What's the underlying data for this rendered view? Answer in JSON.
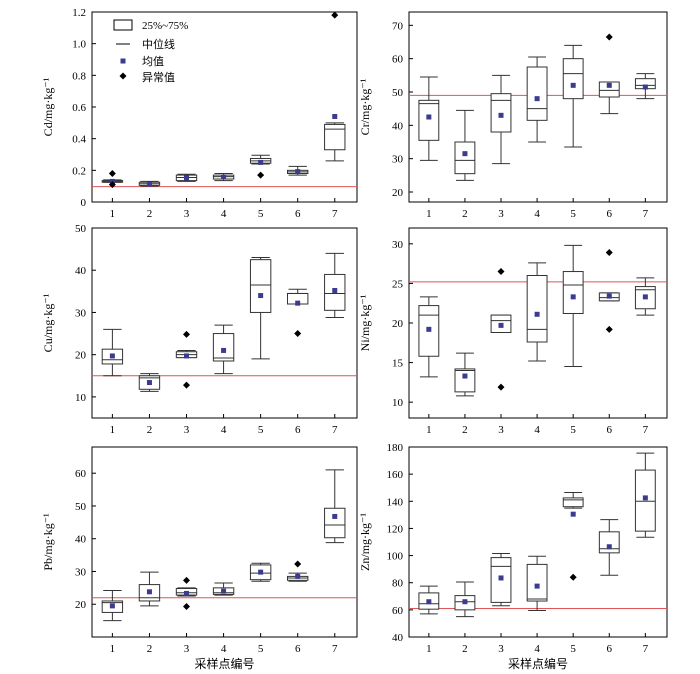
{
  "figure": {
    "xlabel_bottom": "采样点编号",
    "legend": {
      "box_label": "25%~75%",
      "median_label": "中位线",
      "mean_label": "均值",
      "outlier_label": "异常值"
    },
    "colors": {
      "reference_line": "#e05555",
      "mean_marker": "#3b3b8f",
      "box_stroke": "#333333",
      "outlier": "#000000"
    }
  },
  "chart_data": [
    {
      "type": "box",
      "ylabel": "Cd/mg·kg⁻¹",
      "categories": [
        "1",
        "2",
        "3",
        "4",
        "5",
        "6",
        "7"
      ],
      "ylim": [
        0,
        1.2
      ],
      "yticks": [
        0,
        0.2,
        0.4,
        0.6,
        0.8,
        1.0,
        1.2
      ],
      "ytick_labels": [
        "0",
        "0.2",
        "0.4",
        "0.6",
        "0.8",
        "1.0",
        "1.2"
      ],
      "reference_line": 0.097,
      "has_legend": true,
      "boxes": [
        {
          "whisker_low": 0.125,
          "q1": 0.125,
          "median": 0.13,
          "q3": 0.135,
          "whisker_high": 0.14,
          "mean": 0.13,
          "outliers": [
            0.18,
            0.11
          ]
        },
        {
          "whisker_low": 0.1,
          "q1": 0.105,
          "median": 0.115,
          "q3": 0.125,
          "whisker_high": 0.13,
          "mean": 0.112,
          "outliers": []
        },
        {
          "whisker_low": 0.13,
          "q1": 0.135,
          "median": 0.155,
          "q3": 0.17,
          "whisker_high": 0.175,
          "mean": 0.152,
          "outliers": []
        },
        {
          "whisker_low": 0.135,
          "q1": 0.145,
          "median": 0.16,
          "q3": 0.17,
          "whisker_high": 0.18,
          "mean": 0.158,
          "outliers": []
        },
        {
          "whisker_low": 0.24,
          "q1": 0.245,
          "median": 0.26,
          "q3": 0.275,
          "whisker_high": 0.295,
          "mean": 0.25,
          "outliers": [
            0.17
          ]
        },
        {
          "whisker_low": 0.17,
          "q1": 0.18,
          "median": 0.19,
          "q3": 0.2,
          "whisker_high": 0.225,
          "mean": 0.192,
          "outliers": []
        },
        {
          "whisker_low": 0.26,
          "q1": 0.33,
          "median": 0.46,
          "q3": 0.49,
          "whisker_high": 0.5,
          "mean": 0.54,
          "outliers": [
            1.18
          ]
        }
      ]
    },
    {
      "type": "box",
      "ylabel": "Cr/mg·kg⁻¹",
      "categories": [
        "1",
        "2",
        "3",
        "4",
        "5",
        "6",
        "7"
      ],
      "ylim": [
        17,
        74
      ],
      "yticks": [
        20,
        30,
        40,
        50,
        60,
        70
      ],
      "ytick_labels": [
        "20",
        "30",
        "40",
        "50",
        "60",
        "70"
      ],
      "reference_line": 49,
      "has_legend": false,
      "boxes": [
        {
          "whisker_low": 29.5,
          "q1": 35.5,
          "median": 46.5,
          "q3": 47.5,
          "whisker_high": 54.5,
          "mean": 42.5,
          "outliers": []
        },
        {
          "whisker_low": 23.5,
          "q1": 25.5,
          "median": 29.5,
          "q3": 35,
          "whisker_high": 44.5,
          "mean": 31.5,
          "outliers": []
        },
        {
          "whisker_low": 28.5,
          "q1": 38,
          "median": 47.5,
          "q3": 49.5,
          "whisker_high": 55,
          "mean": 43,
          "outliers": []
        },
        {
          "whisker_low": 35,
          "q1": 41.5,
          "median": 45,
          "q3": 57.5,
          "whisker_high": 60.5,
          "mean": 48,
          "outliers": []
        },
        {
          "whisker_low": 33.5,
          "q1": 48,
          "median": 55.5,
          "q3": 60,
          "whisker_high": 64,
          "mean": 52,
          "outliers": []
        },
        {
          "whisker_low": 43.5,
          "q1": 48.5,
          "median": 50.5,
          "q3": 53,
          "whisker_high": 53,
          "mean": 52,
          "outliers": [
            66.5
          ]
        },
        {
          "whisker_low": 48,
          "q1": 51,
          "median": 52,
          "q3": 54,
          "whisker_high": 55.5,
          "mean": 51.5,
          "outliers": []
        }
      ]
    },
    {
      "type": "box",
      "ylabel": "Cu/mg·kg⁻¹",
      "categories": [
        "1",
        "2",
        "3",
        "4",
        "5",
        "6",
        "7"
      ],
      "ylim": [
        5,
        50
      ],
      "yticks": [
        10,
        20,
        30,
        40,
        50
      ],
      "ytick_labels": [
        "10",
        "20",
        "30",
        "40",
        "50"
      ],
      "reference_line": 15,
      "has_legend": false,
      "boxes": [
        {
          "whisker_low": 15,
          "q1": 17.8,
          "median": 18.8,
          "q3": 21.3,
          "whisker_high": 26,
          "mean": 19.7,
          "outliers": []
        },
        {
          "whisker_low": 11.3,
          "q1": 11.8,
          "median": 14.5,
          "q3": 15,
          "whisker_high": 15.5,
          "mean": 13.4,
          "outliers": []
        },
        {
          "whisker_low": 19.3,
          "q1": 19.3,
          "median": 20,
          "q3": 20.7,
          "whisker_high": 21,
          "mean": 19.7,
          "outliers": [
            24.8,
            12.8
          ]
        },
        {
          "whisker_low": 15.5,
          "q1": 18.5,
          "median": 19.2,
          "q3": 25,
          "whisker_high": 27,
          "mean": 21,
          "outliers": []
        },
        {
          "whisker_low": 19,
          "q1": 30,
          "median": 36.5,
          "q3": 42.5,
          "whisker_high": 43,
          "mean": 34,
          "outliers": []
        },
        {
          "whisker_low": 32,
          "q1": 32,
          "median": 34.5,
          "q3": 34.5,
          "whisker_high": 35.5,
          "mean": 32.2,
          "outliers": [
            25
          ]
        },
        {
          "whisker_low": 28.8,
          "q1": 30.5,
          "median": 34.5,
          "q3": 39,
          "whisker_high": 44,
          "mean": 35.2,
          "outliers": []
        }
      ]
    },
    {
      "type": "box",
      "ylabel": "Ni/mg·kg⁻¹",
      "categories": [
        "1",
        "2",
        "3",
        "4",
        "5",
        "6",
        "7"
      ],
      "ylim": [
        8,
        32
      ],
      "yticks": [
        10,
        15,
        20,
        25,
        30
      ],
      "ytick_labels": [
        "10",
        "15",
        "20",
        "25",
        "30"
      ],
      "reference_line": 25.2,
      "has_legend": false,
      "boxes": [
        {
          "whisker_low": 13.2,
          "q1": 15.8,
          "median": 21,
          "q3": 22.2,
          "whisker_high": 23.3,
          "mean": 19.2,
          "outliers": []
        },
        {
          "whisker_low": 10.8,
          "q1": 11.3,
          "median": 14,
          "q3": 14.2,
          "whisker_high": 16.2,
          "mean": 13.3,
          "outliers": []
        },
        {
          "whisker_low": 18.8,
          "q1": 18.8,
          "median": 20.3,
          "q3": 21,
          "whisker_high": 21,
          "mean": 19.7,
          "outliers": [
            26.5,
            11.9
          ]
        },
        {
          "whisker_low": 15.2,
          "q1": 17.6,
          "median": 19.2,
          "q3": 26,
          "whisker_high": 27.6,
          "mean": 21.1,
          "outliers": []
        },
        {
          "whisker_low": 14.5,
          "q1": 21.2,
          "median": 24.8,
          "q3": 26.5,
          "whisker_high": 29.8,
          "mean": 23.3,
          "outliers": []
        },
        {
          "whisker_low": 22.8,
          "q1": 22.8,
          "median": 23.2,
          "q3": 23.8,
          "whisker_high": 23.8,
          "mean": 23.4,
          "outliers": [
            28.9,
            19.2
          ]
        },
        {
          "whisker_low": 21,
          "q1": 21.8,
          "median": 24.2,
          "q3": 24.6,
          "whisker_high": 25.7,
          "mean": 23.3,
          "outliers": []
        }
      ]
    },
    {
      "type": "box",
      "ylabel": "Pb/mg·kg⁻¹",
      "categories": [
        "1",
        "2",
        "3",
        "4",
        "5",
        "6",
        "7"
      ],
      "ylim": [
        10,
        68
      ],
      "yticks": [
        20,
        30,
        40,
        50,
        60
      ],
      "ytick_labels": [
        "20",
        "30",
        "40",
        "50",
        "60"
      ],
      "reference_line": 22,
      "has_legend": false,
      "boxes": [
        {
          "whisker_low": 15,
          "q1": 17.5,
          "median": 20.5,
          "q3": 21,
          "whisker_high": 24.2,
          "mean": 19.5,
          "outliers": []
        },
        {
          "whisker_low": 19.5,
          "q1": 21,
          "median": 22,
          "q3": 26,
          "whisker_high": 29.8,
          "mean": 23.8,
          "outliers": []
        },
        {
          "whisker_low": 22.5,
          "q1": 22.8,
          "median": 23.5,
          "q3": 24.8,
          "whisker_high": 25,
          "mean": 23.3,
          "outliers": [
            27.3,
            19.3
          ]
        },
        {
          "whisker_low": 22.8,
          "q1": 23,
          "median": 23.5,
          "q3": 25,
          "whisker_high": 26.5,
          "mean": 24,
          "outliers": []
        },
        {
          "whisker_low": 27,
          "q1": 27.5,
          "median": 29.5,
          "q3": 32,
          "whisker_high": 32.5,
          "mean": 29.8,
          "outliers": []
        },
        {
          "whisker_low": 27,
          "q1": 27.3,
          "median": 28,
          "q3": 28.5,
          "whisker_high": 29.5,
          "mean": 28.5,
          "outliers": [
            32.3
          ]
        },
        {
          "whisker_low": 38.8,
          "q1": 40.3,
          "median": 44.2,
          "q3": 49.3,
          "whisker_high": 61,
          "mean": 46.8,
          "outliers": []
        }
      ]
    },
    {
      "type": "box",
      "ylabel": "Zn/mg·kg⁻¹",
      "categories": [
        "1",
        "2",
        "3",
        "4",
        "5",
        "6",
        "7"
      ],
      "ylim": [
        40,
        180
      ],
      "yticks": [
        40,
        60,
        80,
        100,
        120,
        140,
        160,
        180
      ],
      "ytick_labels": [
        "40",
        "60",
        "80",
        "100",
        "120",
        "140",
        "160",
        "180"
      ],
      "reference_line": 61,
      "has_legend": false,
      "boxes": [
        {
          "whisker_low": 57,
          "q1": 60.5,
          "median": 64.5,
          "q3": 72.5,
          "whisker_high": 77.5,
          "mean": 66,
          "outliers": []
        },
        {
          "whisker_low": 55,
          "q1": 60,
          "median": 66,
          "q3": 70.5,
          "whisker_high": 80.5,
          "mean": 66,
          "outliers": []
        },
        {
          "whisker_low": 63,
          "q1": 65.5,
          "median": 92,
          "q3": 98.5,
          "whisker_high": 101.5,
          "mean": 83.5,
          "outliers": []
        },
        {
          "whisker_low": 59.5,
          "q1": 66.5,
          "median": 68,
          "q3": 93.5,
          "whisker_high": 99.5,
          "mean": 77.5,
          "outliers": []
        },
        {
          "whisker_low": 135,
          "q1": 136,
          "median": 141,
          "q3": 142.5,
          "whisker_high": 146.5,
          "mean": 130.5,
          "outliers": [
            84
          ]
        },
        {
          "whisker_low": 85.5,
          "q1": 102,
          "median": 105,
          "q3": 117.5,
          "whisker_high": 126.5,
          "mean": 106.5,
          "outliers": []
        },
        {
          "whisker_low": 113.5,
          "q1": 118,
          "median": 140,
          "q3": 163,
          "whisker_high": 175.5,
          "mean": 142.5,
          "outliers": []
        }
      ]
    }
  ]
}
